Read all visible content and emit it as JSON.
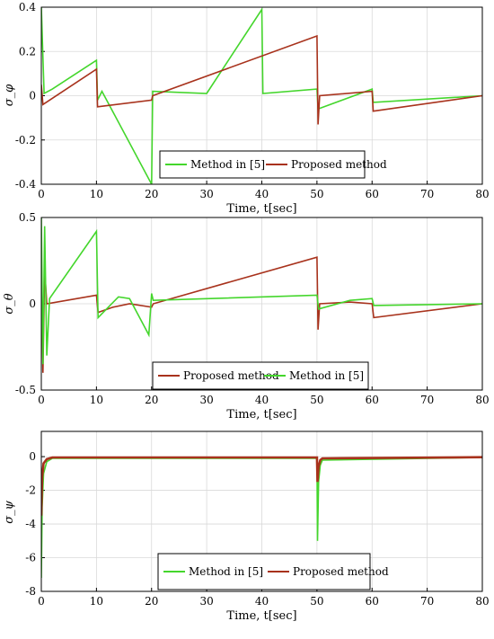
{
  "colors": {
    "method_in_5": "#44d62c",
    "proposed": "#a8321c",
    "grid": "#d9d9d9",
    "axis": "#000000"
  },
  "chart_data": [
    {
      "type": "line",
      "ylabel": "σ_φ",
      "xlabel": "Time, t[sec]",
      "xlim": [
        0,
        80
      ],
      "ylim": [
        -0.4,
        0.4
      ],
      "xticks": [
        "0",
        "10",
        "20",
        "30",
        "40",
        "50",
        "60",
        "70",
        "80"
      ],
      "yticks": [
        "0.4",
        "0.2",
        "0",
        "-0.2",
        "-0.4"
      ],
      "grid": true,
      "legend_position": "bottom-center",
      "legend": [
        "Method in [5]",
        "Proposed method"
      ],
      "series": [
        {
          "name": "Method in [5]",
          "x": [
            0,
            0.5,
            2,
            10,
            10.2,
            11,
            20,
            20.2,
            30,
            40,
            40.2,
            50,
            50.2,
            60,
            60.2,
            80
          ],
          "y": [
            0.4,
            0.01,
            0.03,
            0.16,
            -0.02,
            0.02,
            -0.4,
            0.02,
            0.01,
            0.39,
            0.01,
            0.03,
            -0.06,
            0.03,
            -0.03,
            0.0
          ]
        },
        {
          "name": "Proposed method",
          "x": [
            0,
            0.3,
            10,
            10.2,
            20,
            20.2,
            50,
            50.2,
            50.5,
            60,
            60.2,
            80
          ],
          "y": [
            0.05,
            -0.04,
            0.12,
            -0.05,
            -0.02,
            0.0,
            0.27,
            -0.13,
            0.0,
            0.02,
            -0.07,
            0.0
          ]
        }
      ]
    },
    {
      "type": "line",
      "ylabel": "σ_θ",
      "xlabel": "Time, t[sec]",
      "xlim": [
        0,
        80
      ],
      "ylim": [
        -0.5,
        0.5
      ],
      "xticks": [
        "0",
        "10",
        "20",
        "30",
        "40",
        "50",
        "60",
        "70",
        "80"
      ],
      "yticks": [
        "0.5",
        "0",
        "-0.5"
      ],
      "grid": true,
      "legend_position": "bottom-center",
      "legend": [
        "Proposed method",
        "Method in [5]"
      ],
      "series": [
        {
          "name": "Proposed method",
          "x": [
            0,
            0.3,
            0.6,
            1.0,
            10,
            10.3,
            13,
            16,
            20,
            20.3,
            50,
            50.2,
            50.5,
            56,
            60,
            60.3,
            80
          ],
          "y": [
            0.3,
            -0.4,
            0.2,
            0.0,
            0.05,
            -0.05,
            -0.02,
            0.0,
            -0.02,
            0.0,
            0.27,
            -0.15,
            0.0,
            0.01,
            0.0,
            -0.08,
            0.0
          ]
        },
        {
          "name": "Method in [5]",
          "x": [
            0,
            0.3,
            0.6,
            1.0,
            1.5,
            10,
            10.3,
            14,
            16,
            19.5,
            20,
            20.3,
            50,
            50.3,
            56,
            60,
            60.3,
            80
          ],
          "y": [
            0.5,
            -0.35,
            0.45,
            -0.3,
            0.03,
            0.42,
            -0.08,
            0.04,
            0.03,
            -0.18,
            0.06,
            0.02,
            0.05,
            -0.03,
            0.02,
            0.03,
            -0.01,
            0.0
          ]
        }
      ]
    },
    {
      "type": "line",
      "ylabel": "σ_ψ",
      "xlabel": "Time, t[sec]",
      "xlim": [
        0,
        80
      ],
      "ylim": [
        -8,
        1.5
      ],
      "xticks": [
        "0",
        "10",
        "20",
        "30",
        "40",
        "50",
        "60",
        "70",
        "80"
      ],
      "yticks": [
        "0",
        "-2",
        "-4",
        "-6",
        "-8"
      ],
      "grid": true,
      "legend_position": "bottom-center",
      "legend": [
        "Method in [5]",
        "Proposed method"
      ],
      "series": [
        {
          "name": "Method in [5]",
          "x": [
            0,
            0.15,
            0.4,
            1.0,
            2.0,
            50,
            50.1,
            50.3,
            50.6,
            51,
            80
          ],
          "y": [
            -7.2,
            -3.0,
            -1.0,
            -0.3,
            -0.1,
            -0.1,
            -5.0,
            -1.5,
            -0.5,
            -0.2,
            -0.05
          ]
        },
        {
          "name": "Proposed method",
          "x": [
            0,
            0.15,
            0.4,
            1.0,
            2.0,
            50,
            50.1,
            50.3,
            50.6,
            51,
            80
          ],
          "y": [
            -3.5,
            -1.2,
            -0.4,
            -0.15,
            -0.05,
            -0.05,
            -1.5,
            -0.6,
            -0.2,
            -0.1,
            -0.03
          ]
        }
      ]
    }
  ]
}
